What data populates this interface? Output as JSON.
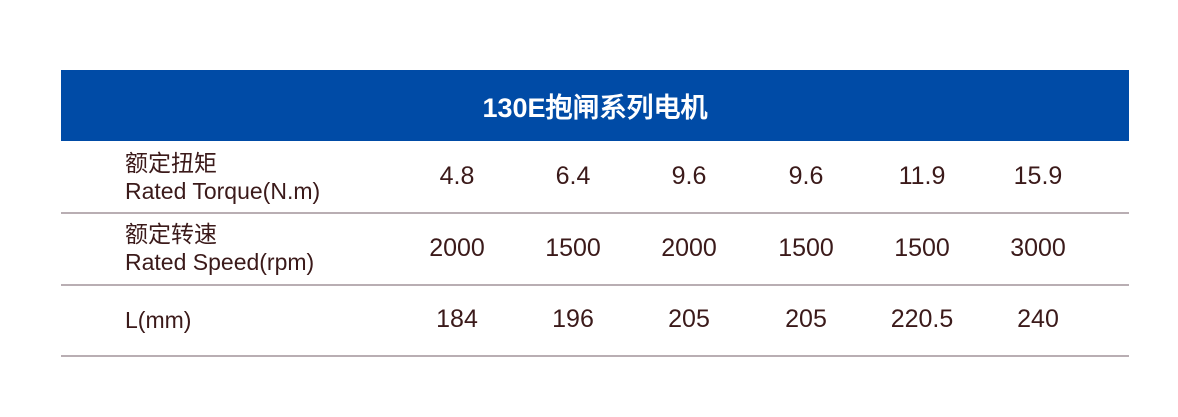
{
  "title": "130E抱闸系列电机",
  "colors": {
    "header_bg": "#004ba6",
    "text": "#3b1a1a",
    "divider": "#b9aeb3"
  },
  "rows": [
    {
      "label_cn": "额定扭矩",
      "label_en": "Rated Torque(N.m)",
      "values": [
        "4.8",
        "6.4",
        "9.6",
        "9.6",
        "11.9",
        "15.9"
      ]
    },
    {
      "label_cn": "额定转速",
      "label_en": "Rated Speed(rpm)",
      "values": [
        "2000",
        "1500",
        "2000",
        "1500",
        "1500",
        "3000"
      ]
    },
    {
      "label_cn": "",
      "label_en": "L(mm)",
      "values": [
        "184",
        "196",
        "205",
        "205",
        "220.5",
        "240"
      ]
    }
  ]
}
